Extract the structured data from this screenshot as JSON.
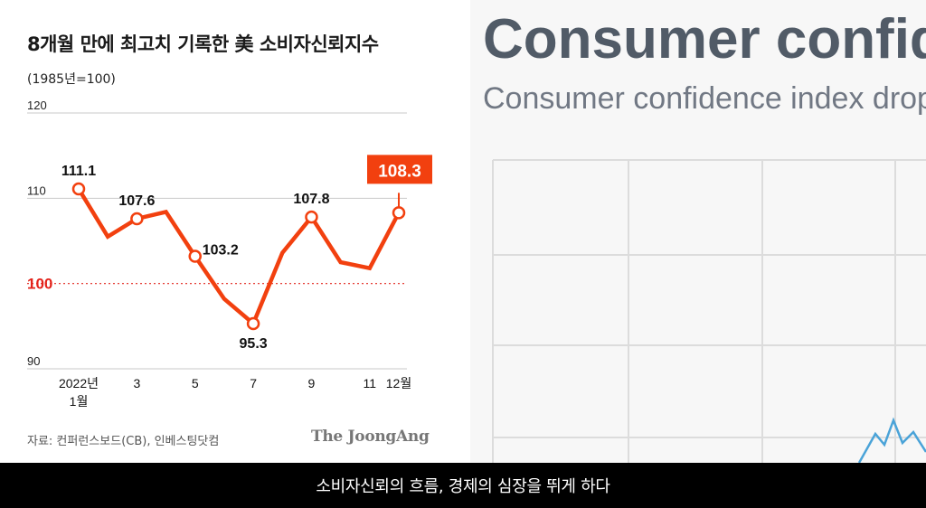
{
  "caption": "소비자신뢰의 흐름, 경제의 심장을 뛰게 하다",
  "background": {
    "title": "Consumer confide",
    "subtitle": "Consumer confidence index drop"
  },
  "source_text": "자료: 컨퍼런스보드(CB), 인베스팅닷컴",
  "publisher": "The JoongAng",
  "colors": {
    "series": "#f2400f",
    "baseline": "#e3231b",
    "point_fill": "#ffffff",
    "highlight_label_bg": "#f2400f",
    "bg_line": "#4aa3d8"
  },
  "chart_data": {
    "type": "line",
    "title": "8개월 만에 최고치 기록한 美 소비자신뢰지수",
    "unit_label": "(1985년=100)",
    "ylim": [
      90,
      120
    ],
    "yticks": [
      {
        "value": 120,
        "label": "120"
      },
      {
        "value": 110,
        "label": "110"
      },
      {
        "value": 100,
        "label": "100"
      },
      {
        "value": 90,
        "label": "90"
      }
    ],
    "baseline": 100,
    "xticks": [
      {
        "month": 1,
        "label": "2022년",
        "label2": "1월"
      },
      {
        "month": 3,
        "label": "3"
      },
      {
        "month": 5,
        "label": "5"
      },
      {
        "month": 7,
        "label": "7"
      },
      {
        "month": 9,
        "label": "9"
      },
      {
        "month": 11,
        "label": "11"
      },
      {
        "month": 12,
        "label": "12월"
      }
    ],
    "x": [
      1,
      2,
      3,
      4,
      5,
      6,
      7,
      8,
      9,
      10,
      11,
      12
    ],
    "values": [
      111.1,
      105.5,
      107.6,
      108.4,
      103.2,
      98.2,
      95.3,
      103.6,
      107.8,
      102.5,
      101.8,
      108.3
    ],
    "labeled_points": [
      {
        "index": 0,
        "label": "111.1",
        "pos": "above"
      },
      {
        "index": 2,
        "label": "107.6",
        "pos": "above"
      },
      {
        "index": 4,
        "label": "103.2",
        "pos": "right"
      },
      {
        "index": 6,
        "label": "95.3",
        "pos": "below"
      },
      {
        "index": 8,
        "label": "107.8",
        "pos": "above"
      },
      {
        "index": 11,
        "label": "108.3",
        "pos": "highlight"
      }
    ],
    "grid": false
  }
}
